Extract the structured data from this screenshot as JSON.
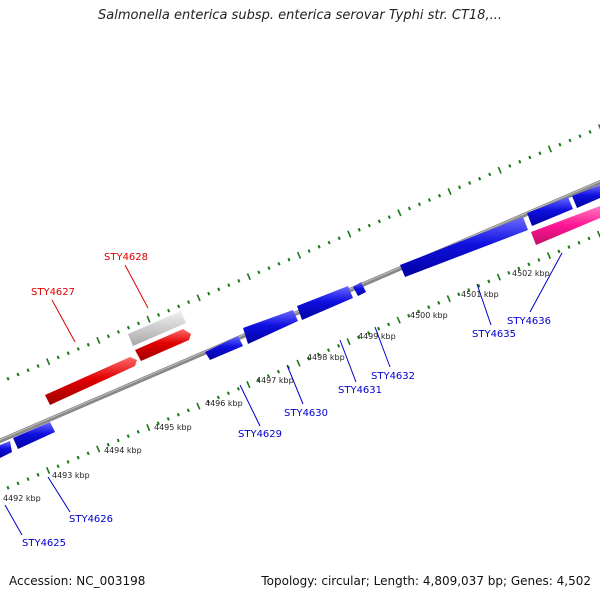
{
  "title": "Salmonella enterica subsp. enterica serovar Typhi str. CT18,...",
  "footer": {
    "accession": "Accession: NC_003198",
    "summary": "Topology: circular; Length: 4,809,037 bp; Genes: 4,502"
  },
  "kbp_labels": [
    "4492 kbp",
    "4493 kbp",
    "4494 kbp",
    "4495 kbp",
    "4496 kbp",
    "4497 kbp",
    "4498 kbp",
    "4499 kbp",
    "4500 kbp",
    "4501 kbp",
    "4502 kbp"
  ],
  "gene_labels": [
    "STY4625",
    "STY4626",
    "STY4627",
    "STY4628",
    "STY4629",
    "STY4630",
    "STY4631",
    "STY4632",
    "STY4635",
    "STY4636"
  ],
  "colors": {
    "backbone": "#808080",
    "forward_gene": "#e00000",
    "pseudo_gene": "#c8c8c8",
    "reverse_gene": "#0000e0",
    "rna_gene": "#ff1493",
    "tick": "#1a7a1a",
    "label_red": "#dd0000",
    "label_blue": "#0000cc"
  }
}
